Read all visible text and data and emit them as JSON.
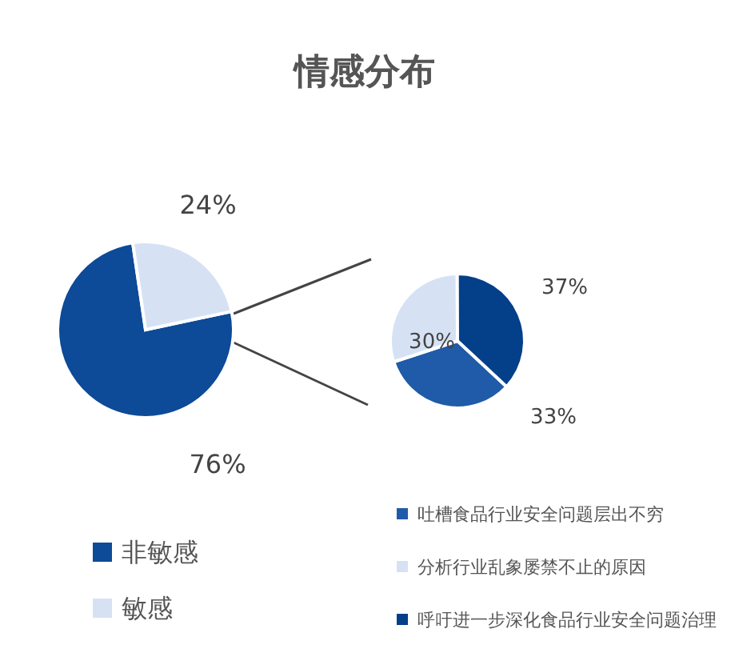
{
  "chart_data": [
    {
      "type": "pie",
      "title": "情感分布",
      "categories": [
        "非敏感",
        "敏感"
      ],
      "values": [
        76,
        24
      ],
      "colors": [
        "#0d4a97",
        "#d6e2f4"
      ],
      "value_labels": [
        "76%",
        "24%"
      ],
      "legend": "bottom"
    },
    {
      "type": "pie",
      "categories": [
        "吐槽食品行业安全问题层出不穷",
        "分析行业乱象屡禁不止的原因",
        "呼吁进一步深化食品行业安全问题治理"
      ],
      "values": [
        33,
        30,
        37
      ],
      "colors": [
        "#1f5ba8",
        "#d6e2f4",
        "#043f8a"
      ],
      "value_labels": [
        "33%",
        "30%",
        "37%"
      ],
      "legend": "bottom"
    }
  ]
}
